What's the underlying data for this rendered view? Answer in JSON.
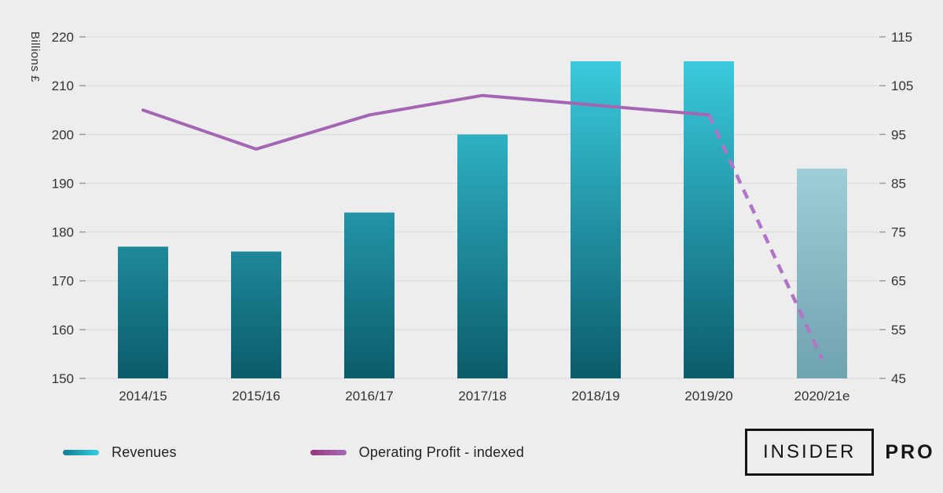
{
  "chart_data": {
    "type": "bar",
    "subtype": "combo-bar-line",
    "title": "",
    "categories": [
      "2014/15",
      "2015/16",
      "2016/17",
      "2017/18",
      "2018/19",
      "2019/20",
      "2020/21e"
    ],
    "left_axis": {
      "label": "Billions £",
      "min": 150,
      "max": 220,
      "step": 10,
      "ticks": [
        150,
        160,
        170,
        180,
        190,
        200,
        210,
        220
      ]
    },
    "right_axis": {
      "label": "",
      "min": 45,
      "max": 115,
      "step": 10,
      "ticks": [
        45,
        55,
        65,
        75,
        85,
        95,
        105,
        115
      ]
    },
    "series": [
      {
        "name": "Revenues",
        "type": "bar",
        "axis": "left",
        "values": [
          177,
          176,
          184,
          200,
          215,
          215,
          193
        ],
        "last_bar_estimated": true
      },
      {
        "name": "Operating Profit - indexed",
        "type": "line",
        "axis": "right",
        "values": [
          100,
          92,
          99,
          103,
          101,
          99,
          49
        ],
        "dashed_from_index": 5
      }
    ],
    "grid": true,
    "legend_position": "bottom-left"
  },
  "colors": {
    "background": "#ededed",
    "grid": "#d9d9d9",
    "tick": "#9b9b9b",
    "axis_text": "#333333",
    "bar_gradient_top": "#3dd3e5",
    "bar_gradient_bottom": "#0b5b6b",
    "bar_estimated_top": "#bce9f0",
    "bar_estimated_bottom": "#6fa3af",
    "line": "#a466b2",
    "line_dashed": "#b175c5",
    "legend_revenues_start": "#0c7f92",
    "legend_revenues_end": "#38cfe2",
    "legend_operating_start": "#97357f",
    "legend_operating_end": "#a76ab5",
    "logo": "#141414"
  },
  "logo": {
    "boxed_text": "INSIDER",
    "suffix": "PRO"
  }
}
